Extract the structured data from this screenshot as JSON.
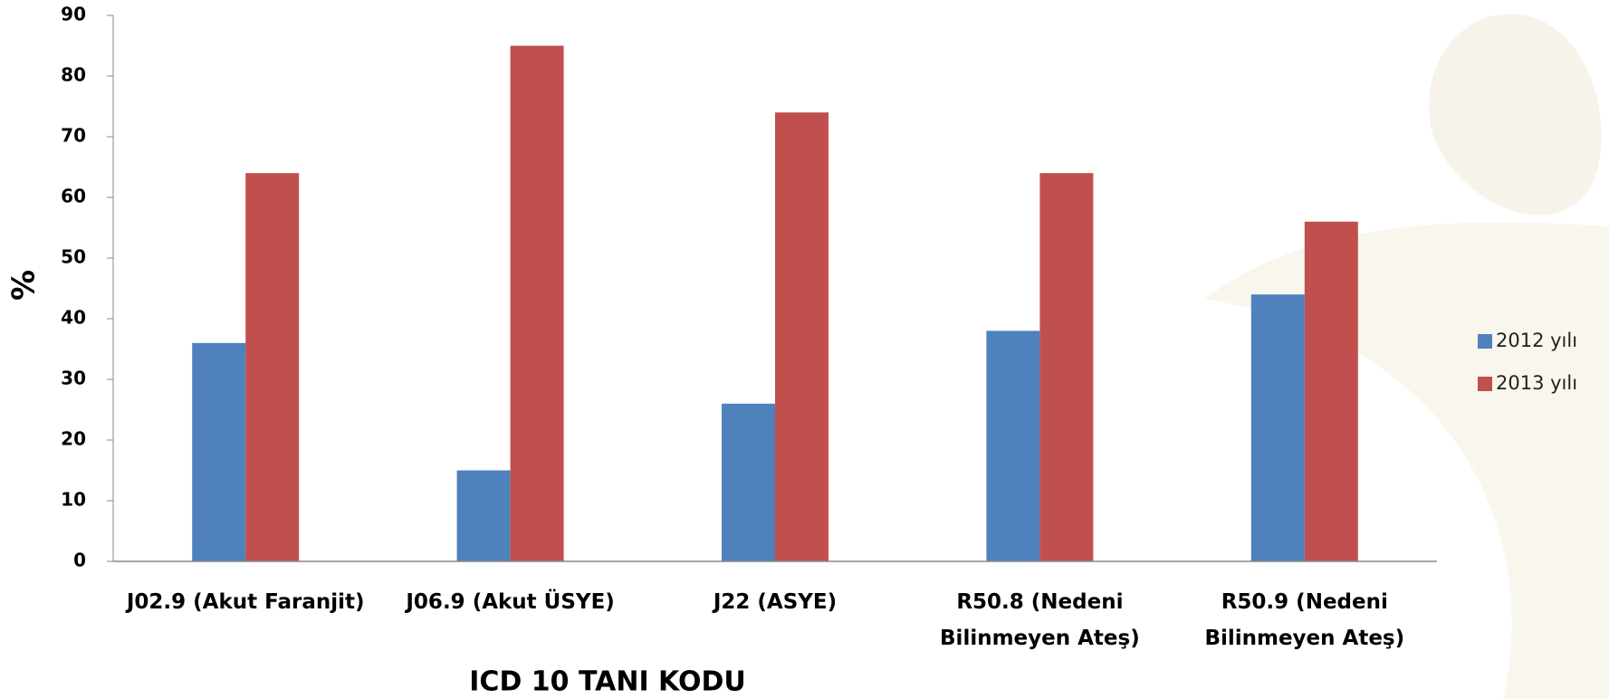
{
  "chart_data": {
    "type": "bar",
    "categories": [
      "J02.9 (Akut Faranjit)",
      "J06.9 (Akut ÜSYE)",
      "J22 (ASYE)",
      "R50.8 (Nedeni Bilinmeyen Ateş)",
      "R50.9 (Nedeni Bilinmeyen Ateş)"
    ],
    "series": [
      {
        "name": "2012 yılı",
        "color": "#4f81bd",
        "values": [
          36,
          15,
          26,
          38,
          44
        ]
      },
      {
        "name": "2013 yılı",
        "color": "#c0504d",
        "values": [
          64,
          85,
          74,
          64,
          56
        ]
      }
    ],
    "ylim": [
      0,
      90
    ],
    "yticks": [
      0,
      10,
      20,
      30,
      40,
      50,
      60,
      70,
      80,
      90
    ],
    "y_label": "%",
    "x_label": "ICD 10 TANI KODU",
    "legend": "right"
  }
}
